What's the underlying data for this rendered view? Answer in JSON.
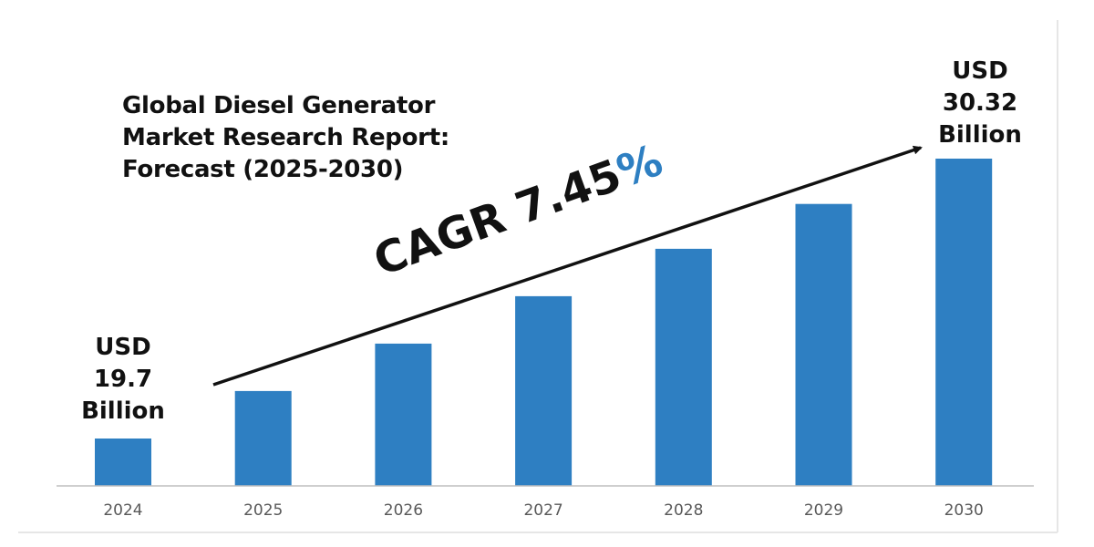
{
  "title_lines": [
    "Global Diesel Generator",
    "Market Research Report:",
    "Forecast (2025-2030)"
  ],
  "start_callout": [
    "USD",
    "19.7",
    "Billion"
  ],
  "end_callout": [
    "USD",
    "30.32",
    "Billion"
  ],
  "cagr": {
    "prefix": "CAGR 7.45",
    "suffix": "%"
  },
  "colors": {
    "bar": "#2e7fc2",
    "text": "#111111",
    "axis": "#bfbfbf",
    "tick": "#595959",
    "accent": "#2e7fc2"
  },
  "chart_data": {
    "type": "bar",
    "title": "Global Diesel Generator Market Research Report: Forecast (2025-2030)",
    "categories": [
      "2024",
      "2025",
      "2026",
      "2027",
      "2028",
      "2029",
      "2030"
    ],
    "values": [
      19.7,
      21.5,
      23.3,
      25.1,
      26.9,
      28.6,
      30.32
    ],
    "unit": "USD Billion",
    "xlabel": "",
    "ylabel": "",
    "ylim": [
      17.9,
      30.32
    ],
    "grid": false,
    "annotations": [
      "CAGR 7.45%",
      "USD 19.7 Billion",
      "USD 30.32 Billion"
    ]
  }
}
